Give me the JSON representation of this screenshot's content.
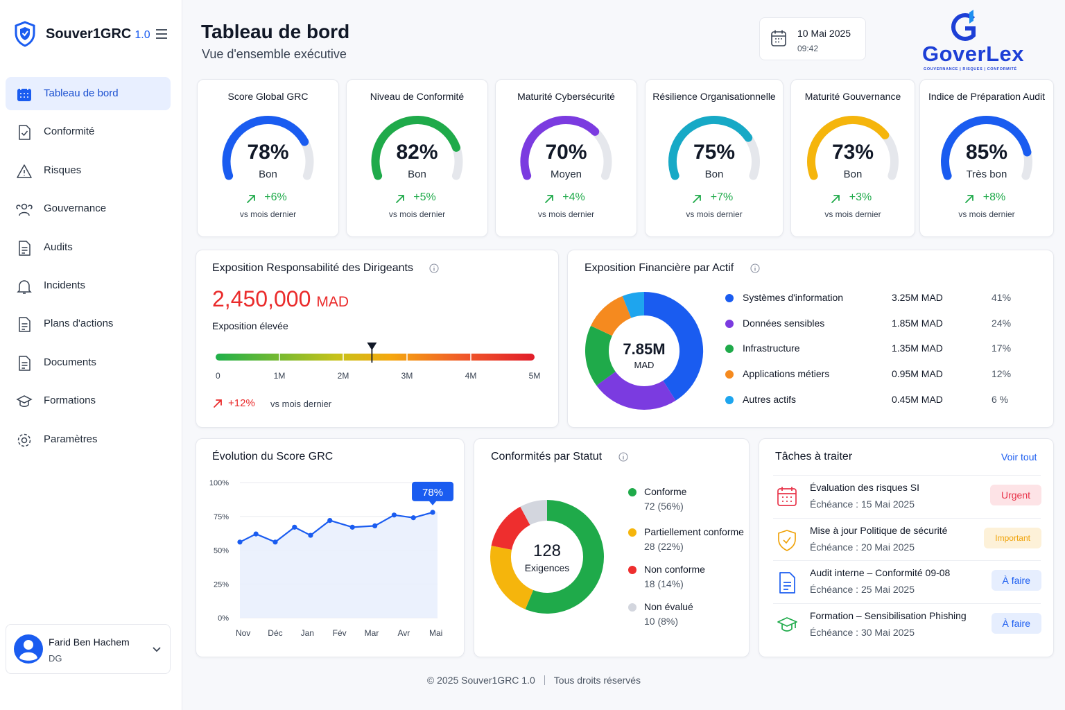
{
  "sidebar": {
    "brand": "Souver1GRC",
    "version": "1.0",
    "nav": [
      "Tableau de bord",
      "Conformité",
      "Risques",
      "Gouvernance",
      "Audits",
      "Incidents",
      "Plans d'actions",
      "Documents",
      "Formations",
      "Paramètres"
    ],
    "user": {
      "name": "Farid Ben Hachem",
      "role": "DG"
    }
  },
  "header": {
    "title": "Tableau de bord",
    "subtitle": "Vue d'ensemble exécutive",
    "date": "10 Mai 2025",
    "time": "09:42",
    "logo": "GoverLex",
    "logo_tagline": "GOUVERNANCE | RISQUES | CONFORMITÉ"
  },
  "kpis": [
    {
      "title": "Score Global GRC",
      "value": 78,
      "value_label": "78%",
      "rating": "Bon",
      "delta": "+6%",
      "note": "vs mois dernier",
      "color": "#1a5cf0"
    },
    {
      "title": "Niveau de Conformité",
      "value": 82,
      "value_label": "82%",
      "rating": "Bon",
      "delta": "+5%",
      "note": "vs mois dernier",
      "color": "#1faa4a"
    },
    {
      "title": "Maturité Cybersécurité",
      "value": 70,
      "value_label": "70%",
      "rating": "Moyen",
      "delta": "+4%",
      "note": "vs mois dernier",
      "color": "#7b3be0"
    },
    {
      "title": "Résilience Organisationnelle",
      "value": 75,
      "value_label": "75%",
      "rating": "Bon",
      "delta": "+7%",
      "note": "vs mois dernier",
      "color": "#17a9c6"
    },
    {
      "title": "Maturité Gouvernance",
      "value": 73,
      "value_label": "73%",
      "rating": "Bon",
      "delta": "+3%",
      "note": "vs mois dernier",
      "color": "#f5b50c"
    },
    {
      "title": "Indice de Préparation Audit",
      "value": 85,
      "value_label": "85%",
      "rating": "Très bon",
      "delta": "+8%",
      "note": "vs mois dernier",
      "color": "#1a5cf0"
    }
  ],
  "exposure": {
    "title": "Exposition Responsabilité des Dirigeants",
    "amount": 2450000,
    "amount_label": "2,450,000",
    "currency": "MAD",
    "level": "Exposition élevée",
    "range": [
      0,
      5000000
    ],
    "ticks": [
      {
        "value": 0,
        "label": "0"
      },
      {
        "value": 1000000,
        "label": "1M"
      },
      {
        "value": 2000000,
        "label": "2M"
      },
      {
        "value": 3000000,
        "label": "3M"
      },
      {
        "value": 4000000,
        "label": "4M"
      },
      {
        "value": 5000000,
        "label": "5M"
      }
    ],
    "delta": "+12%",
    "note": "vs mois dernier"
  },
  "financial": {
    "title": "Exposition Financière par Actif",
    "total": "7.85M",
    "unit": "MAD",
    "items": [
      {
        "name": "Systèmes d'information",
        "amount": "3.25M MAD",
        "share": 41,
        "share_label": "41%",
        "color": "#1a5cf0"
      },
      {
        "name": "Données sensibles",
        "amount": "1.85M MAD",
        "share": 24,
        "share_label": "24%",
        "color": "#7b3be0"
      },
      {
        "name": "Infrastructure",
        "amount": "1.35M MAD",
        "share": 17,
        "share_label": "17%",
        "color": "#1faa4a"
      },
      {
        "name": "Applications métiers",
        "amount": "0.95M MAD",
        "share": 12,
        "share_label": "12%",
        "color": "#f58a1f"
      },
      {
        "name": "Autres actifs",
        "amount": "0.45M MAD",
        "share": 6,
        "share_label": "6 %",
        "color": "#1ea5ee"
      }
    ]
  },
  "evolution": {
    "title": "Évolution du Score GRC",
    "x": [
      -0.1,
      0.4,
      1,
      1.6,
      2.1,
      2.7,
      3.4,
      4.1,
      4.7,
      5.3,
      5.9
    ],
    "values": [
      56,
      62,
      56,
      67,
      61,
      72,
      67,
      68,
      76,
      74,
      78
    ],
    "value_labels": [
      null,
      null,
      null,
      null,
      null,
      null,
      null,
      null,
      null,
      null,
      "78%"
    ],
    "xlim": [
      -0.1,
      6.05
    ],
    "xticks": [
      {
        "value": 0,
        "label": "Nov"
      },
      {
        "value": 1,
        "label": "Déc"
      },
      {
        "value": 2,
        "label": "Jan"
      },
      {
        "value": 3,
        "label": "Fév"
      },
      {
        "value": 4,
        "label": "Mar"
      },
      {
        "value": 5,
        "label": "Avr"
      },
      {
        "value": 6,
        "label": "Mai"
      }
    ],
    "ylim": [
      0,
      100
    ],
    "yticks": [
      {
        "value": 0,
        "label": "0%"
      },
      {
        "value": 25,
        "label": "25%"
      },
      {
        "value": 50,
        "label": "50%"
      },
      {
        "value": 75,
        "label": "75%"
      },
      {
        "value": 100,
        "label": "100%"
      }
    ],
    "color": "#1a5cf0"
  },
  "status": {
    "title": "Conformités par Statut",
    "total": 128,
    "total_label": "Exigences",
    "items": [
      {
        "name": "Conforme",
        "count": 72,
        "label": "72 (56%)",
        "color": "#1faa4a"
      },
      {
        "name": "Partiellement conforme",
        "count": 28,
        "label": "28 (22%)",
        "color": "#f5b50c"
      },
      {
        "name": "Non conforme",
        "count": 18,
        "label": "18 (14%)",
        "color": "#ee2e2e"
      },
      {
        "name": "Non évalué",
        "count": 10,
        "label": "10 (8%)",
        "color": "#d3d6de"
      }
    ]
  },
  "tasks": {
    "title": "Tâches à traiter",
    "link": "Voir tout",
    "items": [
      {
        "title": "Évaluation des risques SI",
        "due": "Échéance : 15 Mai 2025",
        "badge": "Urgent",
        "color": "#e8344a"
      },
      {
        "title": "Mise à jour Politique de sécurité",
        "due": "Échéance : 20 Mai 2025",
        "badge": "Important",
        "color": "#f0a30a"
      },
      {
        "title": "Audit interne – Conformité 09-08",
        "due": "Échéance : 25 Mai 2025",
        "badge": "À faire",
        "color": "#1a5cf0"
      },
      {
        "title": "Formation – Sensibilisation Phishing",
        "due": "Échéance : 30 Mai 2025",
        "badge": "À faire",
        "color": "#1faa4a"
      }
    ]
  },
  "footer": {
    "copyright": "© 2025 Souver1GRC 1.0",
    "rights": "Tous droits réservés"
  }
}
